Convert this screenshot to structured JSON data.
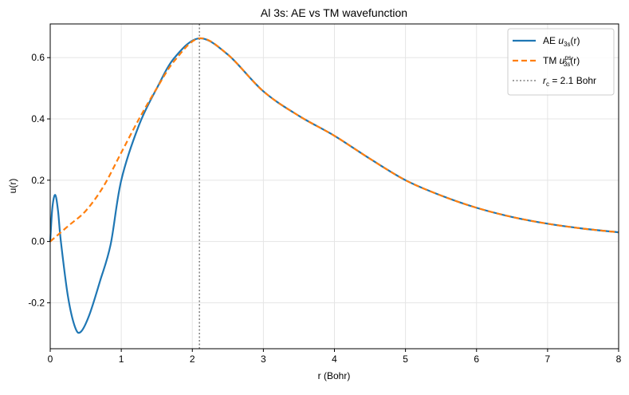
{
  "chart_data": {
    "type": "line",
    "title": "Al 3s: AE vs TM wavefunction",
    "xlabel": "r (Bohr)",
    "ylabel": "u(r)",
    "xlim": [
      0,
      8
    ],
    "ylim": [
      -0.35,
      0.71
    ],
    "xticks": [
      0,
      1,
      2,
      3,
      4,
      5,
      6,
      7,
      8
    ],
    "xtick_labels": [
      "0",
      "1",
      "2",
      "3",
      "4",
      "5",
      "6",
      "7",
      "8"
    ],
    "yticks": [
      -0.2,
      0.0,
      0.2,
      0.4,
      0.6
    ],
    "ytick_labels": [
      "-0.2",
      "0.0",
      "0.2",
      "0.4",
      "0.6"
    ],
    "grid": true,
    "legend_position": "top-right",
    "series": [
      {
        "name": "AE u_3s(r)",
        "legend_prefix": "AE ",
        "legend_sym": "u",
        "legend_sub": "3s",
        "legend_sup": "",
        "legend_suffix": "(r)",
        "color": "#1f77b4",
        "style": "solid",
        "x": [
          0,
          0.03,
          0.07,
          0.11,
          0.15,
          0.25,
          0.35,
          0.43,
          0.55,
          0.7,
          0.85,
          1.0,
          1.25,
          1.5,
          1.75,
          2.1,
          2.5,
          3.0,
          3.5,
          4.0,
          4.5,
          5.0,
          5.5,
          6.0,
          6.5,
          7.0,
          7.5,
          8.0
        ],
        "y": [
          0,
          0.11,
          0.152,
          0.1,
          0.0,
          -0.18,
          -0.28,
          -0.295,
          -0.24,
          -0.13,
          -0.01,
          0.2,
          0.38,
          0.5,
          0.6,
          0.663,
          0.61,
          0.49,
          0.41,
          0.345,
          0.27,
          0.2,
          0.15,
          0.11,
          0.08,
          0.058,
          0.042,
          0.03
        ]
      },
      {
        "name": "TM u_3s^ps(r)",
        "legend_prefix": "TM ",
        "legend_sym": "u",
        "legend_sub": "3s",
        "legend_sup": "ps",
        "legend_suffix": "(r)",
        "color": "#ff7f0e",
        "style": "dashed",
        "x": [
          0,
          0.25,
          0.5,
          0.75,
          1.0,
          1.25,
          1.5,
          1.75,
          2.1,
          2.5,
          3.0,
          3.5,
          4.0,
          4.5,
          5.0,
          5.5,
          6.0,
          6.5,
          7.0,
          7.5,
          8.0
        ],
        "y": [
          0,
          0.05,
          0.1,
          0.18,
          0.29,
          0.4,
          0.5,
          0.59,
          0.663,
          0.61,
          0.49,
          0.41,
          0.345,
          0.27,
          0.2,
          0.15,
          0.11,
          0.08,
          0.058,
          0.042,
          0.03
        ]
      }
    ],
    "annotations": [
      {
        "type": "vline",
        "x": 2.1,
        "color": "#808080",
        "style": "dotted",
        "legend_sym": "r",
        "legend_sub": "c",
        "legend_suffix": " = 2.1 Bohr"
      }
    ]
  }
}
